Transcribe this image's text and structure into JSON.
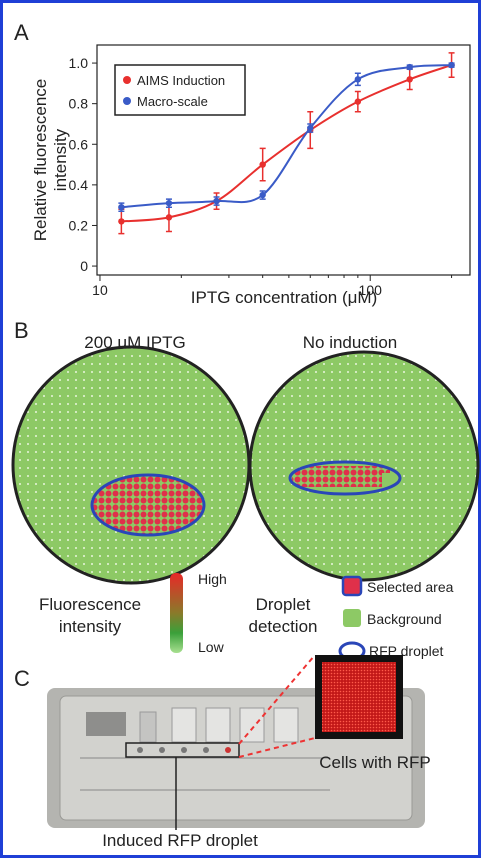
{
  "chart_data": {
    "type": "scatter",
    "panel_label": "A",
    "x_label": "IPTG concentration (μM)",
    "y_label": [
      "Relative fluorescence",
      "intensity"
    ],
    "x_scale": "log",
    "xlim": [
      9.75,
      234
    ],
    "xticks": [
      10,
      100
    ],
    "ylim": [
      -0.044,
      1.089
    ],
    "yticks": [
      0,
      0.2,
      0.4,
      0.6,
      0.8,
      {
        "value": 1,
        "label": "1.0"
      }
    ],
    "legend_position": "upper left",
    "x": [
      12,
      18,
      27,
      40,
      60,
      90,
      140,
      200
    ],
    "series": [
      {
        "name": "AIMS Induction",
        "color": "#e8302e",
        "values": [
          0.22,
          0.24,
          0.32,
          0.5,
          0.67,
          0.81,
          0.92,
          0.99
        ],
        "errors": [
          0.06,
          0.07,
          0.04,
          0.08,
          0.09,
          0.05,
          0.05,
          0.06
        ]
      },
      {
        "name": "Macro-scale",
        "color": "#3a5bc7",
        "values": [
          0.29,
          0.31,
          0.32,
          0.35,
          0.68,
          0.92,
          0.98,
          0.99
        ],
        "errors": [
          0.02,
          0.02,
          0.02,
          0.02,
          0.02,
          0.03,
          0.01,
          0.01
        ]
      }
    ]
  },
  "panel_b": {
    "label": "B",
    "left_title": "200 μM IPTG",
    "right_title": "No induction",
    "intensity_legend": {
      "title": [
        "Fluorescence",
        "intensity"
      ],
      "high": "High",
      "low": "Low"
    },
    "detection_legend": {
      "title": [
        "Droplet",
        "detection"
      ],
      "items": [
        "Selected area",
        "Background",
        "RFP droplet"
      ]
    }
  },
  "panel_c": {
    "label": "C",
    "inset_caption": "Cells with RFP",
    "caption": "Induced RFP droplet"
  }
}
